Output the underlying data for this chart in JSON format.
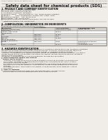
{
  "bg_color": "#f0ede8",
  "header_left": "Product Name: Lithium Ion Battery Cell",
  "header_right_line1": "Reference Number: SPS-SDS-00010",
  "header_right_line2": "Established / Revision: Dec.7.2010",
  "title": "Safety data sheet for chemical products (SDS)",
  "section1_title": "1. PRODUCT AND COMPANY IDENTIFICATION",
  "section1_lines": [
    "・ Product name: Lithium Ion Battery Cell",
    "・ Product code: Cylindrical-type cell",
    "    SN18650U, SN18650L, SN18650A",
    "・ Company name:    Sanyo Electric Co., Ltd., Mobile Energy Company",
    "・ Address:          2001  Kamimakusa, Sumoto-City, Hyogo, Japan",
    "・ Telephone number:    +81-799-26-4111",
    "・ Fax number:  +81-799-26-4129",
    "・ Emergency telephone number (Weekdays) +81-799-26-2662",
    "    (Night and holiday) +81-799-26-4101"
  ],
  "section2_title": "2. COMPOSITION / INFORMATION ON INGREDIENTS",
  "section2_intro": "・ Substance or preparation: Preparation",
  "section2_sub": "・ Information about the chemical nature of product:",
  "section3_title": "3. HAZARDS IDENTIFICATION",
  "section3_para1": "For the battery cell, chemical materials are stored in a hermetically-sealed metal case, designed to withstand",
  "section3_para2": "temperature and pressure-abnormalities during normal use. As a result, during normal use, there is no",
  "section3_para3": "physical danger of ignition or explosion and there is danger of hazardous materials leakage.",
  "section3_para4": "  However, if exposed to a fire, added mechanical shocks, decomposed, arisen electric without any misuse,",
  "section3_para5": "the gas release vent will be operated. The battery cell case will be breached of fire-patterns, hazardous",
  "section3_para6": "materials may be released.",
  "section3_para7": "  Moreover, if heated strongly by the surrounding fire, acid gas may be emitted.",
  "bullet_effects": "・  Most important hazard and effects:",
  "human_health": "Human health effects:",
  "inhalation": "Inhalation: The release of the electrolyte has an anesthesia action and stimulates in respiratory tract.",
  "skin1": "Skin contact: The release of the electrolyte stimulates a skin. The electrolyte skin contact causes a",
  "skin2": "sore and stimulation on the skin.",
  "eye1": "Eye contact: The release of the electrolyte stimulates eyes. The electrolyte eye contact causes a sore",
  "eye2": "and stimulation on the eye. Especially, a substance that causes a strong inflammation of the eyes is",
  "eye3": "contained.",
  "env1": "Environmental effects: Since a battery cell remains in the environment, do not throw out it into the",
  "env2": "environment.",
  "specific": "・  Specific hazards:",
  "spec1": "If the electrolyte contacts with water, it will generate detrimental hydrogen fluoride.",
  "spec2": "Since the used electrolyte is inflammable liquid, do not bring close to fire."
}
